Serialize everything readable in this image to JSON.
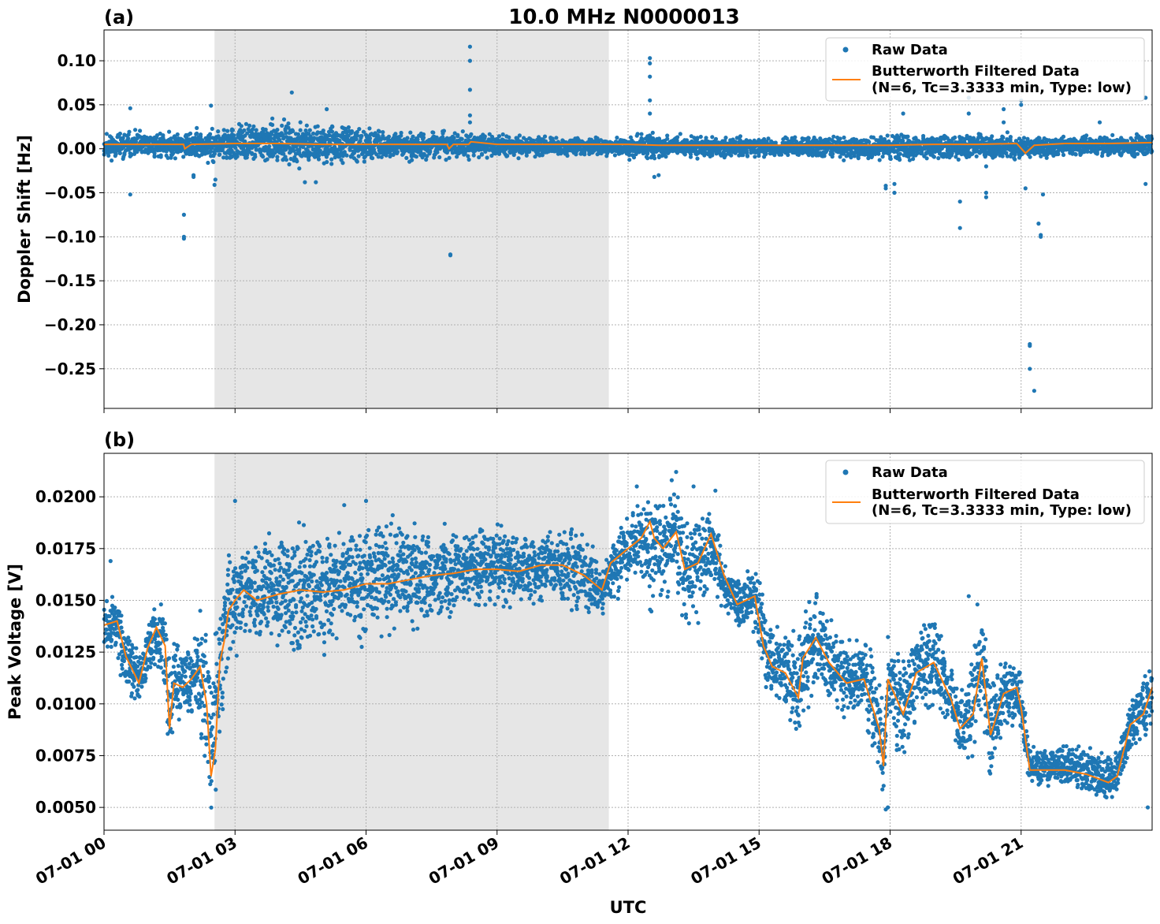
{
  "figure": {
    "title": "10.0 MHz N0000013",
    "xlabel": "UTC",
    "x_tick_labels": [
      "07-01 00",
      "07-01 03",
      "07-01 06",
      "07-01 09",
      "07-01 12",
      "07-01 15",
      "07-01 18",
      "07-01 21"
    ],
    "colors": {
      "raw": "#1f77b4",
      "filtered": "#ff7f0e",
      "shade": "#e6e6e6",
      "grid": "#b0b0b0"
    }
  },
  "chart_data": [
    {
      "type": "scatter",
      "panel_label": "(a)",
      "title": "10.0 MHz N0000013",
      "xlabel": "",
      "ylabel": "Doppler Shift [Hz]",
      "x_unit": "hours UTC on 07-01",
      "xlim": [
        0,
        24
      ],
      "ylim": [
        -0.295,
        0.135
      ],
      "y_ticks": [
        0.1,
        0.05,
        0.0,
        -0.05,
        -0.1,
        -0.15,
        -0.2,
        -0.25
      ],
      "y_tick_labels": [
        "0.10",
        "0.05",
        "0.00",
        "−0.05",
        "−0.10",
        "−0.15",
        "−0.20",
        "−0.25"
      ],
      "grid": true,
      "legend_position": "top-right",
      "shaded_interval": [
        2.53,
        11.56
      ],
      "legend": [
        "Raw Data",
        "Butterworth Filtered Data",
        "(N=6, Tc=3.3333 min, Type: low)"
      ],
      "series": [
        {
          "name": "Raw Data",
          "kind": "scatter",
          "envelope": {
            "x": [
              0,
              1,
              2,
              2.5,
              3,
              4,
              4.5,
              5,
              6,
              7,
              8,
              9,
              10,
              11,
              11.5,
              12,
              12.5,
              13,
              14,
              15,
              16,
              17,
              18,
              19,
              20,
              21,
              22,
              23,
              24
            ],
            "lower": [
              -0.013,
              -0.012,
              -0.014,
              -0.018,
              -0.018,
              -0.02,
              -0.022,
              -0.02,
              -0.016,
              -0.014,
              -0.012,
              -0.011,
              -0.01,
              -0.01,
              -0.008,
              -0.012,
              -0.015,
              -0.012,
              -0.01,
              -0.01,
              -0.01,
              -0.012,
              -0.014,
              -0.012,
              -0.013,
              -0.014,
              -0.01,
              -0.01,
              -0.01
            ],
            "upper": [
              0.02,
              0.02,
              0.022,
              0.025,
              0.028,
              0.032,
              0.034,
              0.03,
              0.026,
              0.022,
              0.02,
              0.018,
              0.016,
              0.014,
              0.012,
              0.016,
              0.02,
              0.016,
              0.014,
              0.014,
              0.014,
              0.015,
              0.017,
              0.016,
              0.018,
              0.018,
              0.015,
              0.016,
              0.018
            ]
          },
          "outliers": {
            "x": [
              0.6,
              0.6,
              1.83,
              1.83,
              1.83,
              2.05,
              2.05,
              2.45,
              2.53,
              2.55,
              4.3,
              4.6,
              4.85,
              5.1,
              7.93,
              7.93,
              8.38,
              8.38,
              8.38,
              8.38,
              8.38,
              12.5,
              12.5,
              12.5,
              12.5,
              12.5,
              12.6,
              12.7,
              17.9,
              17.9,
              18.1,
              18.1,
              18.3,
              19.6,
              19.6,
              19.8,
              19.8,
              20.2,
              20.2,
              20.2,
              20.6,
              20.6,
              21.0,
              21.0,
              21.1,
              21.2,
              21.2,
              21.2,
              21.3,
              21.4,
              21.45,
              21.45,
              21.5,
              22.8,
              23.85,
              23.85
            ],
            "y": [
              0.046,
              -0.052,
              -0.075,
              -0.1,
              -0.102,
              -0.032,
              -0.03,
              0.049,
              -0.041,
              -0.035,
              0.064,
              -0.038,
              -0.038,
              0.045,
              -0.121,
              -0.12,
              0.116,
              0.1,
              0.067,
              0.038,
              0.03,
              0.103,
              0.097,
              0.082,
              0.055,
              0.04,
              -0.032,
              -0.03,
              -0.045,
              -0.042,
              -0.05,
              -0.04,
              0.04,
              -0.06,
              -0.09,
              0.058,
              0.04,
              -0.05,
              -0.055,
              -0.02,
              0.045,
              0.03,
              0.055,
              0.05,
              -0.045,
              -0.222,
              -0.224,
              -0.25,
              -0.275,
              -0.085,
              -0.098,
              -0.1,
              -0.052,
              0.03,
              0.058,
              -0.04
            ]
          }
        },
        {
          "name": "Butterworth Filtered Data",
          "kind": "line",
          "x": [
            0,
            1,
            1.82,
            1.85,
            2,
            3,
            4,
            5,
            6,
            7,
            7.85,
            7.9,
            8,
            8.35,
            8.4,
            9,
            10,
            11,
            12,
            12.7,
            13,
            14,
            15,
            16,
            17,
            18,
            19,
            20,
            20.9,
            21.1,
            21.3,
            22,
            23,
            24
          ],
          "y": [
            0.005,
            0.005,
            0.005,
            0.0,
            0.005,
            0.006,
            0.006,
            0.005,
            0.005,
            0.005,
            0.005,
            0.0,
            0.005,
            0.005,
            0.008,
            0.005,
            0.005,
            0.005,
            0.005,
            0.004,
            0.004,
            0.004,
            0.004,
            0.004,
            0.004,
            0.004,
            0.005,
            0.005,
            0.006,
            -0.005,
            0.004,
            0.006,
            0.006,
            0.007
          ]
        }
      ]
    },
    {
      "type": "scatter",
      "panel_label": "(b)",
      "title": "",
      "xlabel": "UTC",
      "ylabel": "Peak Voltage [V]",
      "x_unit": "hours UTC on 07-01",
      "xlim": [
        0,
        24
      ],
      "ylim": [
        0.0039,
        0.0221
      ],
      "y_ticks": [
        0.02,
        0.0175,
        0.015,
        0.0125,
        0.01,
        0.0075,
        0.005
      ],
      "y_tick_labels": [
        "0.0200",
        "0.0175",
        "0.0150",
        "0.0125",
        "0.0100",
        "0.0075",
        "0.0050"
      ],
      "grid": true,
      "legend_position": "top-right",
      "shaded_interval": [
        2.53,
        11.56
      ],
      "legend": [
        "Raw Data",
        "Butterworth Filtered Data",
        "(N=6, Tc=3.3333 min, Type: low)"
      ],
      "series": [
        {
          "name": "Raw Data",
          "kind": "scatter",
          "envelope": {
            "x": [
              0,
              0.3,
              0.5,
              0.8,
              1.0,
              1.2,
              1.4,
              1.5,
              1.6,
              1.8,
              2.0,
              2.2,
              2.35,
              2.45,
              2.55,
              2.65,
              2.75,
              2.85,
              3.0,
              3.2,
              3.5,
              4.0,
              4.5,
              5.0,
              5.5,
              6.0,
              6.5,
              7.0,
              7.5,
              8.0,
              8.5,
              9.0,
              9.5,
              10.0,
              10.5,
              11.0,
              11.4,
              11.6,
              12.0,
              12.3,
              12.5,
              12.6,
              12.8,
              13.1,
              13.3,
              13.6,
              13.9,
              14.2,
              14.5,
              14.9,
              15.1,
              15.3,
              15.6,
              15.9,
              16.0,
              16.3,
              16.6,
              17.0,
              17.4,
              17.75,
              17.85,
              17.95,
              18.3,
              18.6,
              19.0,
              19.4,
              19.6,
              19.9,
              20.1,
              20.3,
              20.6,
              20.9,
              21.0,
              21.2,
              21.5,
              22.0,
              22.5,
              23.0,
              23.2,
              23.5,
              23.8,
              24.0
            ],
            "lower": [
              0.0125,
              0.012,
              0.0105,
              0.0098,
              0.0115,
              0.011,
              0.0105,
              0.0065,
              0.009,
              0.0085,
              0.009,
              0.0085,
              0.0055,
              0.0048,
              0.0052,
              0.0075,
              0.0085,
              0.0105,
              0.012,
              0.0125,
              0.0125,
              0.0125,
              0.0122,
              0.0125,
              0.0128,
              0.013,
              0.013,
              0.0135,
              0.0138,
              0.014,
              0.0143,
              0.0145,
              0.0145,
              0.0148,
              0.0146,
              0.014,
              0.0142,
              0.015,
              0.0155,
              0.016,
              0.0135,
              0.0155,
              0.015,
              0.0152,
              0.0135,
              0.014,
              0.015,
              0.0145,
              0.0135,
              0.0132,
              0.011,
              0.0095,
              0.0095,
              0.0075,
              0.0095,
              0.0105,
              0.01,
              0.009,
              0.0095,
              0.0055,
              0.005,
              0.0095,
              0.006,
              0.0095,
              0.0098,
              0.0085,
              0.007,
              0.0075,
              0.0095,
              0.0055,
              0.0085,
              0.009,
              0.0085,
              0.006,
              0.006,
              0.0058,
              0.0056,
              0.0052,
              0.0055,
              0.0075,
              0.0078,
              0.0085
            ],
            "upper": [
              0.015,
              0.0155,
              0.014,
              0.0125,
              0.014,
              0.0155,
              0.015,
              0.013,
              0.0135,
              0.013,
              0.0135,
              0.0145,
              0.0145,
              0.012,
              0.0135,
              0.0165,
              0.0175,
              0.018,
              0.018,
              0.0185,
              0.018,
              0.0185,
              0.019,
              0.0185,
              0.0188,
              0.0192,
              0.0192,
              0.0188,
              0.0185,
              0.0185,
              0.019,
              0.0188,
              0.0185,
              0.0185,
              0.0188,
              0.0185,
              0.0165,
              0.018,
              0.0195,
              0.02,
              0.0208,
              0.0205,
              0.02,
              0.0212,
              0.0195,
              0.0195,
              0.02,
              0.0175,
              0.016,
              0.017,
              0.0155,
              0.014,
              0.014,
              0.0132,
              0.0145,
              0.016,
              0.0145,
              0.013,
              0.0135,
              0.0125,
              0.0085,
              0.0135,
              0.0125,
              0.014,
              0.0145,
              0.012,
              0.0105,
              0.0125,
              0.0152,
              0.0115,
              0.0125,
              0.0125,
              0.0115,
              0.008,
              0.008,
              0.0082,
              0.008,
              0.0075,
              0.0078,
              0.0105,
              0.011,
              0.0128
            ]
          },
          "outliers": {
            "x": [
              0.15,
              3.0,
              5.5,
              6.0,
              7.8,
              12.2,
              13.0,
              13.1,
              13.5,
              14.0,
              17.9,
              17.95,
              19.8,
              20.0,
              23.9
            ],
            "y": [
              0.0169,
              0.0198,
              0.0196,
              0.0198,
              0.0187,
              0.0205,
              0.0208,
              0.0212,
              0.0205,
              0.0203,
              0.0049,
              0.005,
              0.0152,
              0.0148,
              0.005
            ]
          }
        },
        {
          "name": "Butterworth Filtered Data",
          "kind": "line",
          "x": [
            0,
            0.3,
            0.5,
            0.8,
            1.0,
            1.2,
            1.4,
            1.5,
            1.6,
            1.8,
            2.0,
            2.2,
            2.35,
            2.45,
            2.55,
            2.65,
            2.75,
            2.85,
            3.0,
            3.2,
            3.5,
            4.0,
            4.5,
            5.0,
            5.5,
            6.0,
            6.5,
            7.0,
            7.5,
            8.0,
            8.5,
            9.0,
            9.5,
            10.0,
            10.5,
            11.0,
            11.4,
            11.6,
            12.0,
            12.3,
            12.5,
            12.6,
            12.8,
            13.1,
            13.3,
            13.6,
            13.9,
            14.2,
            14.5,
            14.9,
            15.1,
            15.3,
            15.6,
            15.9,
            16.0,
            16.3,
            16.6,
            17.0,
            17.4,
            17.75,
            17.85,
            17.95,
            18.3,
            18.6,
            19.0,
            19.4,
            19.6,
            19.9,
            20.1,
            20.3,
            20.6,
            20.9,
            21.0,
            21.2,
            21.5,
            22.0,
            22.5,
            23.0,
            23.2,
            23.5,
            23.8,
            24.0
          ],
          "y": [
            0.0138,
            0.014,
            0.0123,
            0.011,
            0.0127,
            0.0137,
            0.0128,
            0.0088,
            0.011,
            0.0108,
            0.0112,
            0.0118,
            0.01,
            0.0065,
            0.0078,
            0.012,
            0.013,
            0.0145,
            0.015,
            0.0155,
            0.015,
            0.0153,
            0.0155,
            0.0154,
            0.0155,
            0.0158,
            0.0158,
            0.016,
            0.0162,
            0.0163,
            0.0165,
            0.0165,
            0.0164,
            0.0167,
            0.0167,
            0.0162,
            0.0155,
            0.0168,
            0.0175,
            0.018,
            0.0188,
            0.018,
            0.0175,
            0.0183,
            0.0165,
            0.0168,
            0.0182,
            0.0162,
            0.0148,
            0.0152,
            0.0128,
            0.0118,
            0.0115,
            0.0103,
            0.0122,
            0.0132,
            0.012,
            0.011,
            0.0112,
            0.0088,
            0.007,
            0.0112,
            0.0095,
            0.0115,
            0.012,
            0.0102,
            0.0088,
            0.0095,
            0.0122,
            0.0085,
            0.0105,
            0.0108,
            0.0098,
            0.0068,
            0.0068,
            0.0068,
            0.0066,
            0.0062,
            0.0065,
            0.009,
            0.0095,
            0.0108
          ]
        }
      ]
    }
  ]
}
